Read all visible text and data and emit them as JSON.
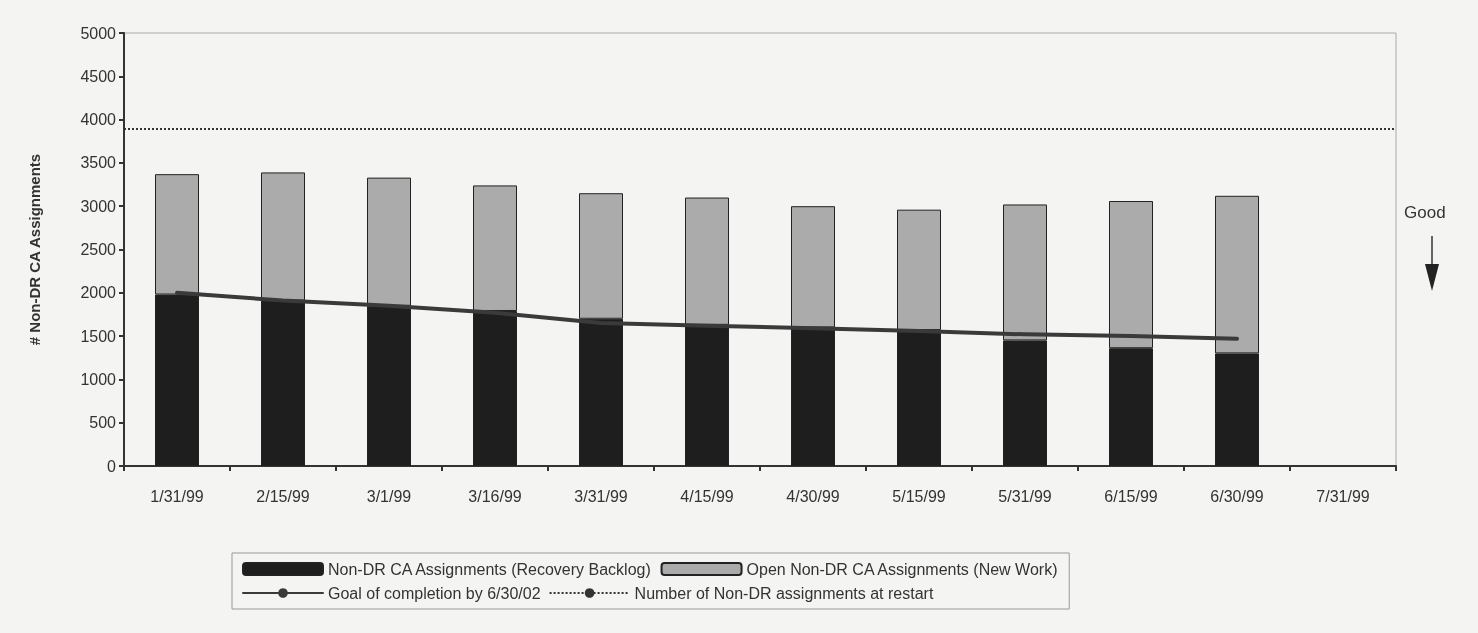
{
  "chart_data": {
    "type": "bar",
    "stacked": true,
    "ylabel": "# Non-DR CA Assignments",
    "categories": [
      "1/31/99",
      "2/15/99",
      "3/1/99",
      "3/16/99",
      "3/31/99",
      "4/15/99",
      "4/30/99",
      "5/15/99",
      "5/31/99",
      "6/15/99",
      "6/30/99",
      "7/31/99"
    ],
    "series": [
      {
        "name": "Non-DR CA Assignments (Recovery Backlog)",
        "color": "#1e1e1e",
        "values": [
          1980,
          1910,
          1850,
          1790,
          1700,
          1630,
          1600,
          1570,
          1450,
          1360,
          1300,
          null
        ]
      },
      {
        "name": "Open Non-DR CA Assignments (New Work)",
        "color": "#ababab",
        "values": [
          1390,
          1480,
          1480,
          1450,
          1450,
          1470,
          1400,
          1390,
          1570,
          1700,
          1820,
          null
        ]
      },
      {
        "name": "Goal of completion by 6/30/02",
        "type": "line",
        "color": "#3a3a3a",
        "values": [
          2000,
          1910,
          1850,
          1770,
          1650,
          1620,
          1590,
          1560,
          1520,
          1500,
          1470,
          null
        ]
      }
    ],
    "ref_lines": [
      {
        "axis": "y",
        "value": 3900,
        "label": "Number of Non-DR assignments at restart",
        "color": "#333333",
        "line_style": "dotted"
      }
    ],
    "ylim": [
      0,
      5000
    ],
    "yticks": [
      0,
      500,
      1000,
      1500,
      2000,
      2500,
      3000,
      3500,
      4000,
      4500,
      5000
    ],
    "grid": false,
    "legend": "bottom",
    "marker": "none",
    "annotations": [
      "Good"
    ]
  }
}
